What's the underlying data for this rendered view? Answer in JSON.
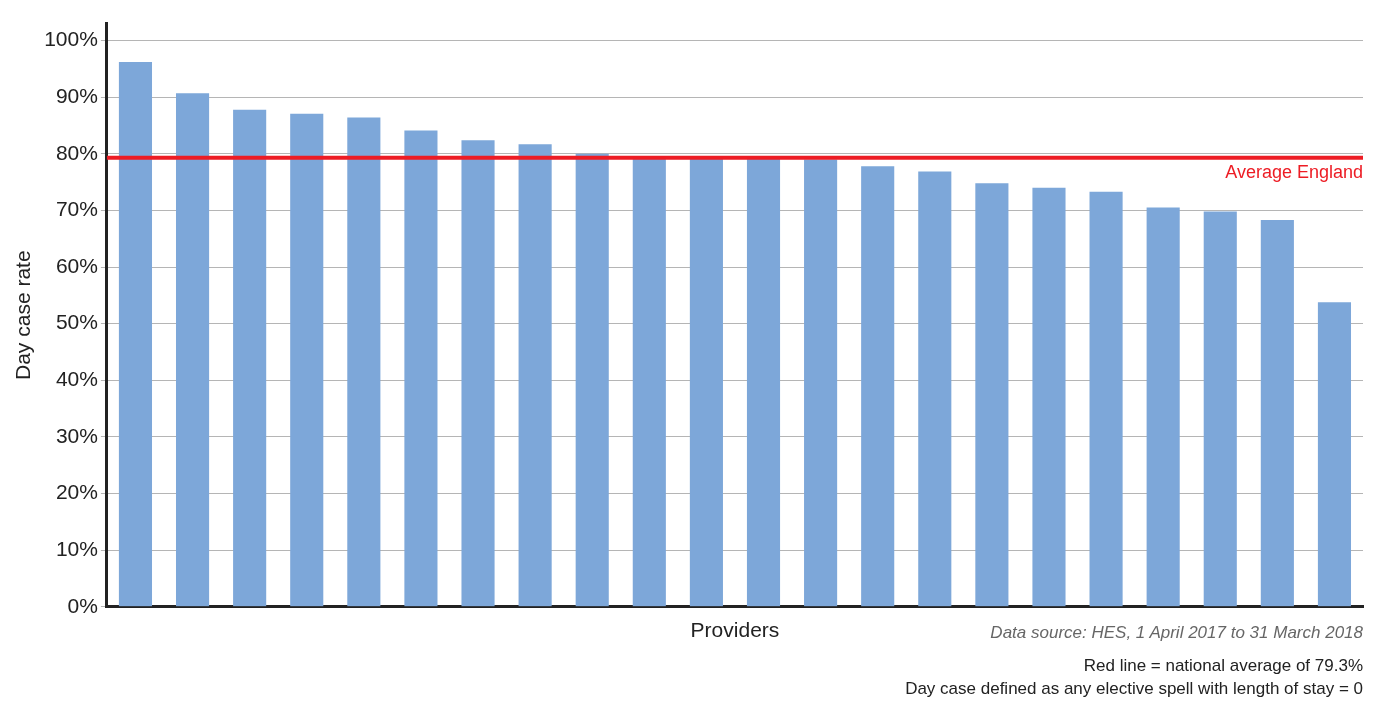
{
  "chart_data": {
    "type": "bar",
    "xlabel": "Providers",
    "ylabel": "Day case rate",
    "categories": [
      null,
      null,
      null,
      null,
      null,
      null,
      null,
      null,
      null,
      null,
      null,
      null,
      null,
      null,
      null,
      null,
      null,
      null,
      null,
      null,
      null,
      null
    ],
    "values": [
      96.2,
      90.7,
      87.8,
      87.1,
      86.4,
      84.1,
      82.4,
      81.7,
      80.0,
      79.2,
      79.1,
      79.1,
      79.0,
      77.8,
      76.9,
      74.8,
      74.0,
      73.3,
      70.5,
      69.8,
      68.3,
      53.8
    ],
    "color": "#7da7d9",
    "ylim": [
      0,
      103
    ],
    "yticks": [
      {
        "value": 0,
        "label": "0%"
      },
      {
        "value": 10,
        "label": "10%"
      },
      {
        "value": 20,
        "label": "20%"
      },
      {
        "value": 30,
        "label": "30%"
      },
      {
        "value": 40,
        "label": "40%"
      },
      {
        "value": 50,
        "label": "50%"
      },
      {
        "value": 60,
        "label": "60%"
      },
      {
        "value": 70,
        "label": "70%"
      },
      {
        "value": 80,
        "label": "80%"
      },
      {
        "value": 90,
        "label": "90%"
      },
      {
        "value": 100,
        "label": "100%"
      }
    ],
    "grid": "y",
    "legend": false,
    "ref_lines": [
      {
        "axis": "y",
        "value": 79.3,
        "label": "Average England",
        "color": "#ed1c24"
      }
    ],
    "annotations": [
      "Data source: HES, 1 April 2017 to 31 March 2018",
      "Red line = national average of 79.3%",
      "Day case defined as any elective spell with length of stay = 0"
    ]
  }
}
